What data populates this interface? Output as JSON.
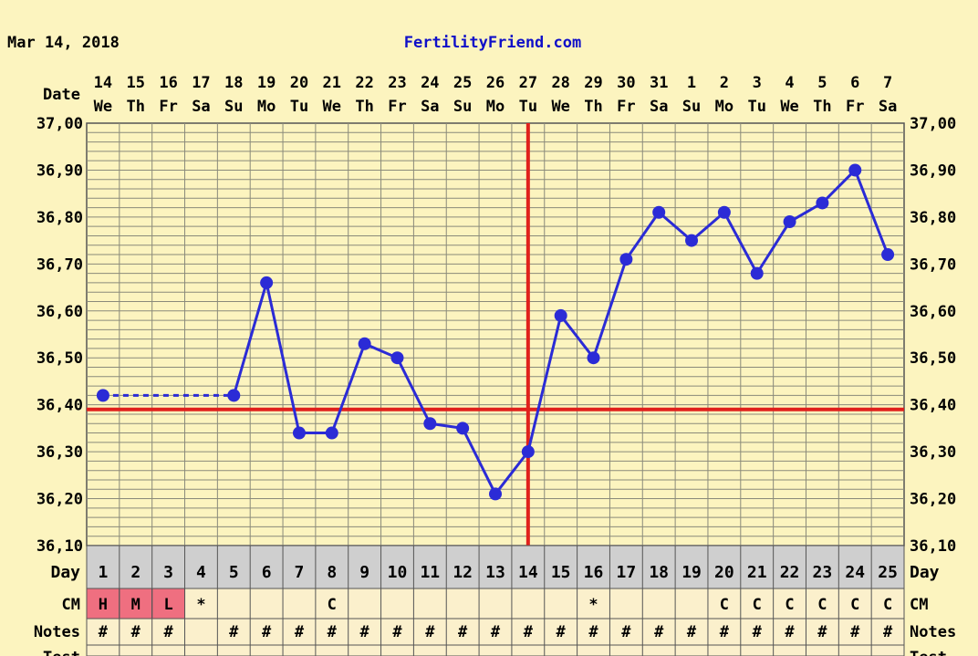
{
  "header": {
    "date": "Mar 14, 2018",
    "site": "FertilityFriend.com"
  },
  "colors": {
    "background": "#fcf4bf",
    "grid": "#8a8a7a",
    "line": "#2b2bd6",
    "coverline": "#e0201c",
    "day_row": "#cfcfcf",
    "cm_cell": "#fbf0cc",
    "cm_highlight": "#ef6f80",
    "header_text": "#1010c8"
  },
  "chart_data": {
    "type": "line",
    "title": "",
    "xlabel": "Date",
    "ylabel": "",
    "ylim": [
      36.1,
      37.0
    ],
    "y_ticks": [
      "37,00",
      "36,90",
      "36,80",
      "36,70",
      "36,60",
      "36,50",
      "36,40",
      "36,30",
      "36,20",
      "36,10"
    ],
    "dates": [
      "14",
      "15",
      "16",
      "17",
      "18",
      "19",
      "20",
      "21",
      "22",
      "23",
      "24",
      "25",
      "26",
      "27",
      "28",
      "29",
      "30",
      "31",
      "1",
      "2",
      "3",
      "4",
      "5",
      "6",
      "7"
    ],
    "weekdays": [
      "We",
      "Th",
      "Fr",
      "Sa",
      "Su",
      "Mo",
      "Tu",
      "We",
      "Th",
      "Fr",
      "Sa",
      "Su",
      "Mo",
      "Tu",
      "We",
      "Th",
      "Fr",
      "Sa",
      "Su",
      "Mo",
      "Tu",
      "We",
      "Th",
      "Fr",
      "Sa"
    ],
    "days": [
      1,
      2,
      3,
      4,
      5,
      6,
      7,
      8,
      9,
      10,
      11,
      12,
      13,
      14,
      15,
      16,
      17,
      18,
      19,
      20,
      21,
      22,
      23,
      24,
      25
    ],
    "series": [
      {
        "values": [
          36.42,
          null,
          null,
          null,
          36.42,
          36.66,
          36.34,
          36.34,
          36.53,
          36.5,
          36.36,
          36.35,
          36.21,
          36.3,
          36.59,
          36.5,
          36.71,
          36.81,
          36.75,
          36.81,
          36.68,
          36.79,
          36.83,
          36.9,
          36.72
        ]
      }
    ],
    "dashed_gap": {
      "from_day": 1,
      "to_day": 5
    },
    "coverline": 36.39,
    "ovulation_day": 14,
    "grid": true
  },
  "rows": {
    "day_label": "Day",
    "cm_label": "CM",
    "notes_label": "Notes",
    "test_label": "Test",
    "cm_values": [
      "H",
      "M",
      "L",
      "*",
      "",
      "",
      "",
      "C",
      "",
      "",
      "",
      "",
      "",
      "",
      "",
      "*",
      "",
      "",
      "",
      "C",
      "C",
      "C",
      "C",
      "C",
      "C"
    ],
    "cm_highlight_days": [
      1,
      2,
      3
    ],
    "notes_values": [
      "#",
      "#",
      "#",
      "",
      "#",
      "#",
      "#",
      "#",
      "#",
      "#",
      "#",
      "#",
      "#",
      "#",
      "#",
      "#",
      "#",
      "#",
      "#",
      "#",
      "#",
      "#",
      "#",
      "#",
      "#"
    ]
  }
}
